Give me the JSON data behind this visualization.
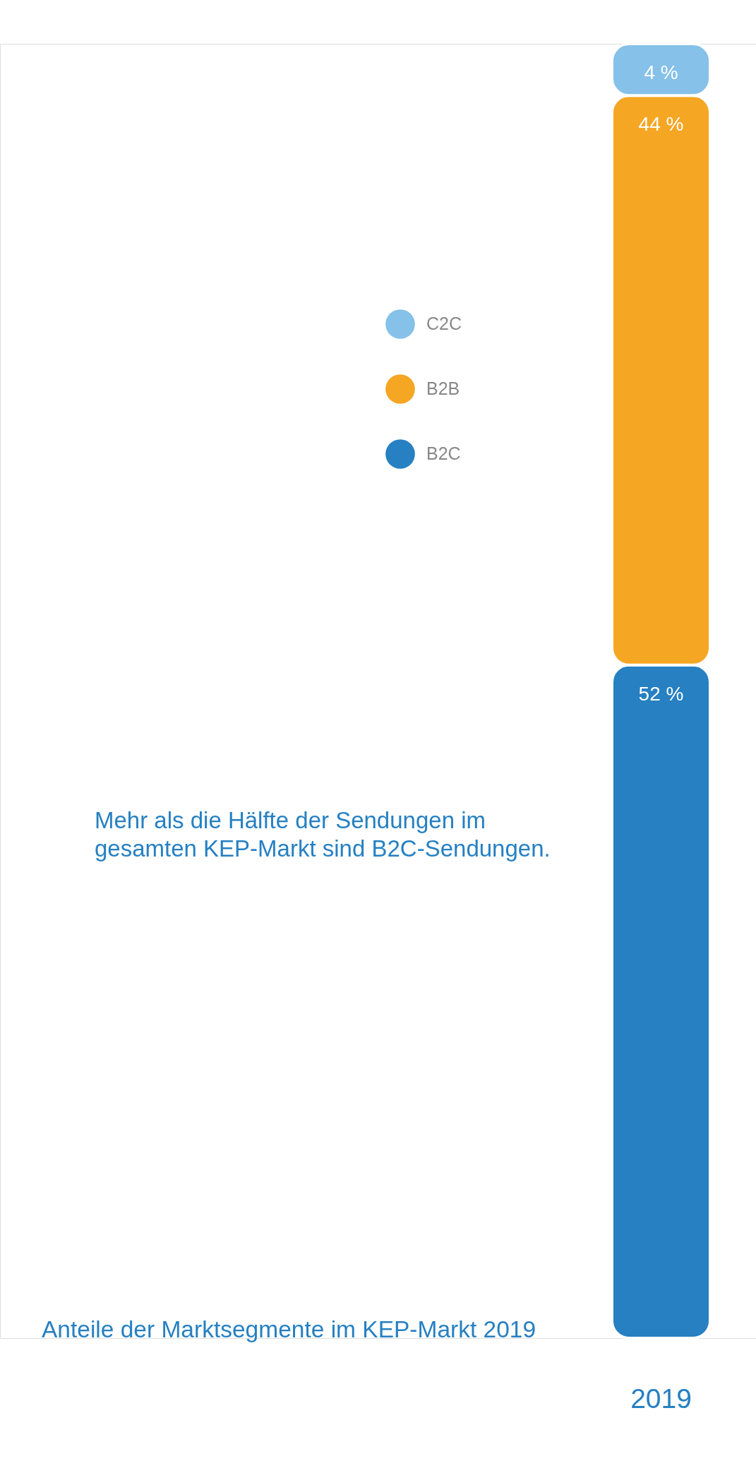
{
  "chart_data": {
    "type": "bar",
    "title": "Anteile der Marktsegmente im KEP-Markt 2019",
    "annotations": [
      "Mehr als die Hälfte der Sendungen im gesamten KEP-Markt sind B2C-Sendungen."
    ],
    "categories": [
      "2019"
    ],
    "stacked": true,
    "ylim": [
      0,
      100
    ],
    "tick_labels": "x",
    "legend": "top",
    "series": [
      {
        "name": "B2C",
        "color": "#2680c2",
        "values": [
          52
        ],
        "value_labels": [
          "52 %"
        ]
      },
      {
        "name": "B2B",
        "color": "#f5a623",
        "values": [
          44
        ],
        "value_labels": [
          "44 %"
        ]
      },
      {
        "name": "C2C",
        "color": "#85c1e9",
        "values": [
          4
        ],
        "value_labels": [
          "4 %"
        ]
      }
    ]
  }
}
